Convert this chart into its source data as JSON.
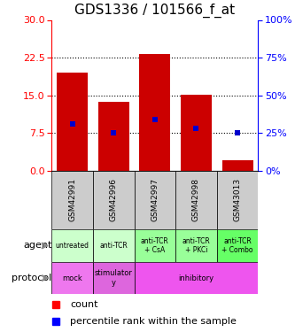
{
  "title": "GDS1336 / 101566_f_at",
  "samples": [
    "GSM42991",
    "GSM42996",
    "GSM42997",
    "GSM42998",
    "GSM43013"
  ],
  "count_values": [
    19.5,
    13.7,
    23.3,
    15.1,
    2.2
  ],
  "percentile_values": [
    9.3,
    7.5,
    10.2,
    8.5,
    7.5
  ],
  "left_ylim": [
    0,
    30
  ],
  "left_yticks": [
    0,
    7.5,
    15,
    22.5,
    30
  ],
  "right_ylim": [
    0,
    100
  ],
  "right_yticks": [
    0,
    25,
    50,
    75,
    100
  ],
  "bar_color": "#cc0000",
  "percentile_color": "#0000cc",
  "agent_labels": [
    "untreated",
    "anti-TCR",
    "anti-TCR\n+ CsA",
    "anti-TCR\n+ PKCi",
    "anti-TCR\n+ Combo"
  ],
  "agent_colors": [
    "#ccffcc",
    "#ccffcc",
    "#99ff99",
    "#99ff99",
    "#66ff66"
  ],
  "sample_bg_color": "#cccccc",
  "title_fontsize": 11,
  "proto_colors": {
    "mock": "#ee77ee",
    "stimulatory": "#ee88ee",
    "inhibitory": "#ee55ee"
  },
  "agent_border_colors": [
    "#aaddaa",
    "#aaddaa",
    "#77cc77",
    "#77cc77",
    "#55bb55"
  ],
  "arrow_color": "#888888"
}
